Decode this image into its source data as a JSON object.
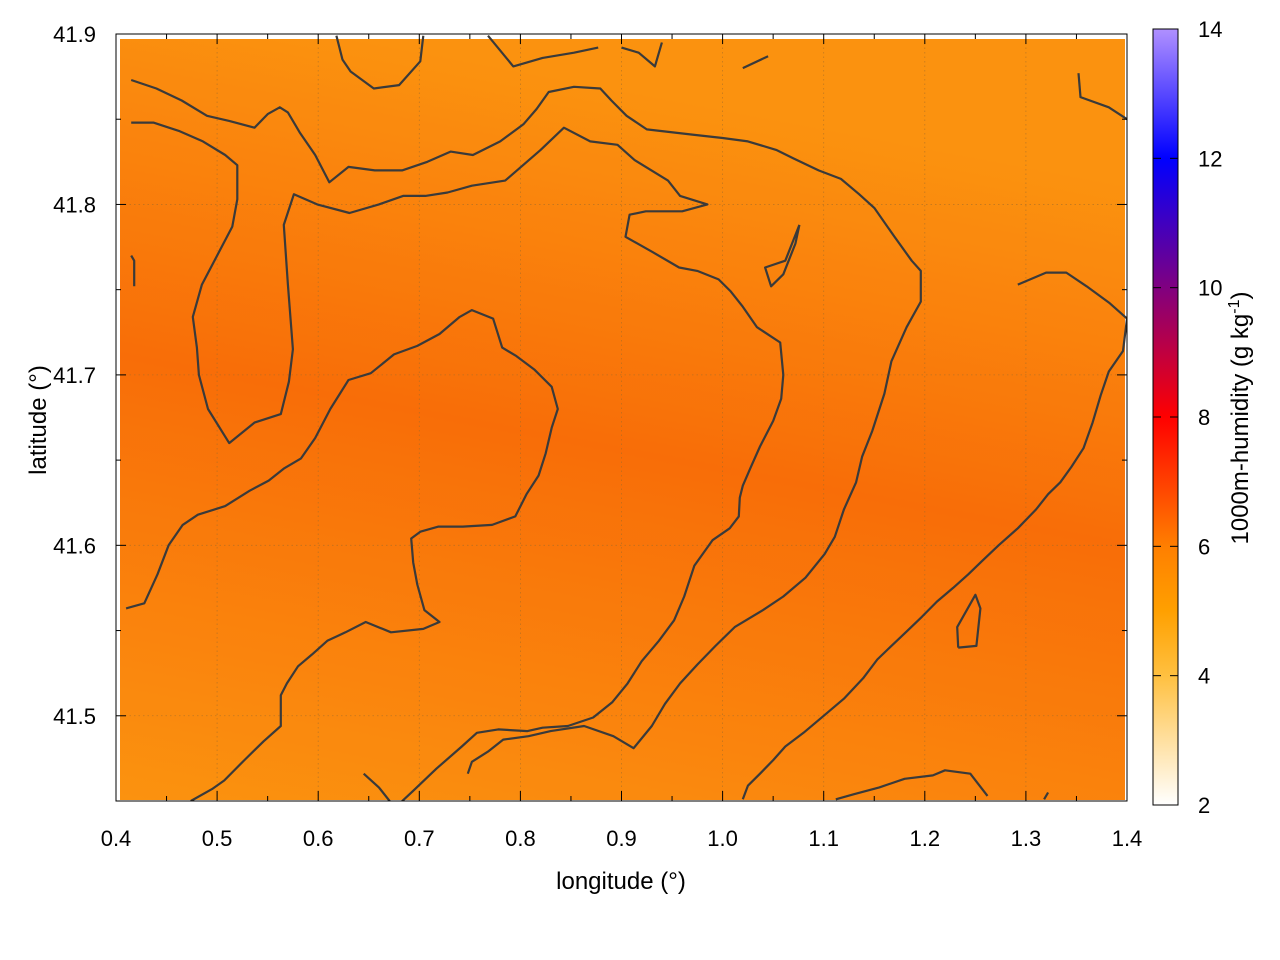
{
  "chart_data": {
    "type": "heatmap",
    "xlabel": "longitude (°)",
    "ylabel": "latitude (°)",
    "colorbar_label_main": "1000m-humidity (g kg",
    "colorbar_label_sup": "-1",
    "colorbar_label_end": ")",
    "xlim": [
      0.4,
      1.4
    ],
    "ylim": [
      41.45,
      41.9
    ],
    "x_ticks": [
      0.4,
      0.5,
      0.6,
      0.7,
      0.8,
      0.9,
      1.0,
      1.1,
      1.2,
      1.3,
      1.4
    ],
    "x_tick_labels": [
      "0.4",
      "0.5",
      "0.6",
      "0.7",
      "0.8",
      "0.9",
      "1.0",
      "1.1",
      "1.2",
      "1.3",
      "1.4"
    ],
    "y_ticks": [
      41.5,
      41.6,
      41.7,
      41.8,
      41.9
    ],
    "y_tick_labels": [
      "41.5",
      "41.6",
      "41.7",
      "41.8",
      "41.9"
    ],
    "colorbar_range": [
      2,
      14
    ],
    "colorbar_ticks": [
      2,
      4,
      6,
      8,
      10,
      12,
      14
    ],
    "colorbar_tick_labels": [
      "2",
      "4",
      "6",
      "8",
      "10",
      "12",
      "14"
    ],
    "colormap": [
      {
        "value": 2,
        "color": "#ffffff"
      },
      {
        "value": 4,
        "color": "#ffc040"
      },
      {
        "value": 5,
        "color": "#ffa000"
      },
      {
        "value": 6,
        "color": "#ff7f00"
      },
      {
        "value": 8,
        "color": "#ff0000"
      },
      {
        "value": 10,
        "color": "#800080"
      },
      {
        "value": 12,
        "color": "#0000ff"
      },
      {
        "value": 14,
        "color": "#b090ff"
      }
    ],
    "field_colors": {
      "low": "#fb9612",
      "high": "#f86c0a"
    },
    "grid": true,
    "contours": [
      [
        [
          0.415,
          41.873
        ],
        [
          0.44,
          41.868
        ],
        [
          0.465,
          41.861
        ],
        [
          0.49,
          41.852
        ],
        [
          0.512,
          41.849
        ],
        [
          0.537,
          41.845
        ],
        [
          0.55,
          41.853
        ],
        [
          0.562,
          41.857
        ],
        [
          0.57,
          41.854
        ],
        [
          0.582,
          41.842
        ],
        [
          0.597,
          41.829
        ],
        [
          0.611,
          41.813
        ],
        [
          0.63,
          41.822
        ],
        [
          0.656,
          41.82
        ],
        [
          0.683,
          41.82
        ],
        [
          0.708,
          41.825
        ],
        [
          0.731,
          41.831
        ],
        [
          0.753,
          41.829
        ],
        [
          0.78,
          41.837
        ],
        [
          0.803,
          41.847
        ],
        [
          0.816,
          41.856
        ],
        [
          0.828,
          41.866
        ],
        [
          0.853,
          41.869
        ],
        [
          0.879,
          41.868
        ],
        [
          0.89,
          41.861
        ],
        [
          0.905,
          41.852
        ],
        [
          0.925,
          41.844
        ],
        [
          0.97,
          41.841
        ],
        [
          1.0,
          41.839
        ],
        [
          1.025,
          41.837
        ],
        [
          1.053,
          41.832
        ],
        [
          1.07,
          41.827
        ],
        [
          1.095,
          41.82
        ],
        [
          1.117,
          41.815
        ],
        [
          1.135,
          41.806
        ],
        [
          1.15,
          41.798
        ],
        [
          1.17,
          41.781
        ],
        [
          1.187,
          41.767
        ],
        [
          1.196,
          41.761
        ],
        [
          1.196,
          41.743
        ],
        [
          1.182,
          41.728
        ],
        [
          1.167,
          41.708
        ],
        [
          1.16,
          41.689
        ],
        [
          1.148,
          41.667
        ],
        [
          1.138,
          41.652
        ],
        [
          1.132,
          41.637
        ],
        [
          1.12,
          41.621
        ],
        [
          1.111,
          41.605
        ],
        [
          1.101,
          41.595
        ],
        [
          1.082,
          41.581
        ],
        [
          1.06,
          41.57
        ],
        [
          1.04,
          41.562
        ],
        [
          1.012,
          41.552
        ],
        [
          0.993,
          41.541
        ],
        [
          0.975,
          41.53
        ],
        [
          0.958,
          41.519
        ],
        [
          0.943,
          41.507
        ],
        [
          0.93,
          41.494
        ],
        [
          0.912,
          41.481
        ],
        [
          0.892,
          41.488
        ],
        [
          0.863,
          41.494
        ],
        [
          0.83,
          41.491
        ],
        [
          0.808,
          41.488
        ],
        [
          0.783,
          41.486
        ],
        [
          0.768,
          41.479
        ],
        [
          0.752,
          41.473
        ],
        [
          0.748,
          41.466
        ]
      ],
      [
        [
          0.415,
          41.848
        ],
        [
          0.437,
          41.848
        ],
        [
          0.463,
          41.843
        ],
        [
          0.486,
          41.837
        ],
        [
          0.508,
          41.829
        ],
        [
          0.52,
          41.823
        ],
        [
          0.52,
          41.803
        ],
        [
          0.515,
          41.787
        ],
        [
          0.5,
          41.77
        ],
        [
          0.485,
          41.753
        ],
        [
          0.476,
          41.734
        ],
        [
          0.48,
          41.716
        ],
        [
          0.482,
          41.7
        ],
        [
          0.491,
          41.68
        ],
        [
          0.512,
          41.66
        ],
        [
          0.537,
          41.672
        ],
        [
          0.563,
          41.677
        ],
        [
          0.571,
          41.696
        ],
        [
          0.575,
          41.715
        ],
        [
          0.57,
          41.753
        ],
        [
          0.566,
          41.788
        ],
        [
          0.576,
          41.806
        ],
        [
          0.599,
          41.8
        ],
        [
          0.631,
          41.795
        ],
        [
          0.66,
          41.8
        ],
        [
          0.684,
          41.805
        ],
        [
          0.706,
          41.805
        ],
        [
          0.728,
          41.807
        ],
        [
          0.752,
          41.811
        ],
        [
          0.785,
          41.814
        ],
        [
          0.82,
          41.832
        ],
        [
          0.843,
          41.845
        ],
        [
          0.869,
          41.837
        ],
        [
          0.896,
          41.835
        ],
        [
          0.913,
          41.826
        ],
        [
          0.946,
          41.814
        ],
        [
          0.958,
          41.805
        ],
        [
          0.985,
          41.8
        ],
        [
          0.96,
          41.796
        ],
        [
          0.924,
          41.796
        ],
        [
          0.908,
          41.794
        ],
        [
          0.904,
          41.781
        ],
        [
          0.931,
          41.772
        ],
        [
          0.957,
          41.763
        ],
        [
          0.975,
          41.761
        ],
        [
          0.996,
          41.756
        ],
        [
          1.008,
          41.749
        ],
        [
          1.02,
          41.74
        ],
        [
          1.034,
          41.728
        ],
        [
          1.057,
          41.719
        ],
        [
          1.06,
          41.7
        ],
        [
          1.058,
          41.686
        ],
        [
          1.05,
          41.673
        ],
        [
          1.037,
          41.658
        ],
        [
          1.028,
          41.646
        ],
        [
          1.02,
          41.635
        ],
        [
          1.017,
          41.628
        ],
        [
          1.016,
          41.617
        ],
        [
          1.007,
          41.61
        ],
        [
          0.99,
          41.603
        ],
        [
          0.972,
          41.588
        ],
        [
          0.962,
          41.57
        ],
        [
          0.952,
          41.556
        ],
        [
          0.937,
          41.544
        ],
        [
          0.92,
          41.532
        ],
        [
          0.906,
          41.519
        ],
        [
          0.891,
          41.508
        ],
        [
          0.872,
          41.499
        ],
        [
          0.847,
          41.494
        ],
        [
          0.822,
          41.493
        ],
        [
          0.807,
          41.491
        ],
        [
          0.778,
          41.492
        ],
        [
          0.757,
          41.49
        ],
        [
          0.742,
          41.482
        ],
        [
          0.717,
          41.469
        ],
        [
          0.694,
          41.456
        ],
        [
          0.676,
          41.446
        ],
        [
          0.66,
          41.458
        ],
        [
          0.645,
          41.466
        ]
      ],
      [
        [
          0.41,
          41.563
        ],
        [
          0.428,
          41.566
        ],
        [
          0.441,
          41.583
        ],
        [
          0.452,
          41.6
        ],
        [
          0.466,
          41.612
        ],
        [
          0.481,
          41.618
        ],
        [
          0.508,
          41.623
        ],
        [
          0.532,
          41.632
        ],
        [
          0.551,
          41.638
        ],
        [
          0.566,
          41.645
        ],
        [
          0.583,
          41.651
        ],
        [
          0.597,
          41.663
        ],
        [
          0.612,
          41.68
        ],
        [
          0.63,
          41.697
        ],
        [
          0.652,
          41.701
        ],
        [
          0.675,
          41.712
        ],
        [
          0.698,
          41.717
        ],
        [
          0.72,
          41.724
        ],
        [
          0.74,
          41.734
        ],
        [
          0.752,
          41.738
        ],
        [
          0.773,
          41.733
        ],
        [
          0.782,
          41.716
        ],
        [
          0.796,
          41.711
        ],
        [
          0.814,
          41.703
        ],
        [
          0.831,
          41.693
        ],
        [
          0.837,
          41.68
        ],
        [
          0.831,
          41.669
        ],
        [
          0.825,
          41.654
        ],
        [
          0.818,
          41.641
        ],
        [
          0.806,
          41.63
        ],
        [
          0.795,
          41.617
        ],
        [
          0.772,
          41.612
        ],
        [
          0.743,
          41.611
        ],
        [
          0.719,
          41.611
        ],
        [
          0.701,
          41.608
        ],
        [
          0.692,
          41.604
        ],
        [
          0.694,
          41.59
        ],
        [
          0.698,
          41.577
        ],
        [
          0.705,
          41.562
        ],
        [
          0.72,
          41.555
        ],
        [
          0.704,
          41.551
        ],
        [
          0.672,
          41.549
        ],
        [
          0.647,
          41.555
        ],
        [
          0.627,
          41.549
        ],
        [
          0.609,
          41.544
        ],
        [
          0.594,
          41.536
        ],
        [
          0.58,
          41.529
        ],
        [
          0.569,
          41.519
        ],
        [
          0.563,
          41.512
        ],
        [
          0.563,
          41.494
        ],
        [
          0.546,
          41.485
        ],
        [
          0.527,
          41.474
        ],
        [
          0.507,
          41.462
        ],
        [
          0.495,
          41.457
        ],
        [
          0.474,
          41.45
        ]
      ],
      [
        [
          1.076,
          41.788
        ],
        [
          1.072,
          41.777
        ],
        [
          1.06,
          41.759
        ],
        [
          1.048,
          41.752
        ],
        [
          1.042,
          41.763
        ],
        [
          1.062,
          41.767
        ],
        [
          1.076,
          41.788
        ]
      ],
      [
        [
          1.233,
          41.54
        ],
        [
          1.251,
          41.541
        ],
        [
          1.255,
          41.563
        ],
        [
          1.25,
          41.571
        ],
        [
          1.232,
          41.552
        ],
        [
          1.233,
          41.54
        ]
      ],
      [
        [
          0.618,
          41.899
        ],
        [
          0.624,
          41.885
        ],
        [
          0.632,
          41.878
        ],
        [
          0.655,
          41.868
        ],
        [
          0.68,
          41.87
        ],
        [
          0.701,
          41.884
        ],
        [
          0.704,
          41.899
        ]
      ],
      [
        [
          0.768,
          41.899
        ],
        [
          0.793,
          41.881
        ],
        [
          0.822,
          41.886
        ],
        [
          0.853,
          41.889
        ],
        [
          0.877,
          41.892
        ]
      ],
      [
        [
          0.9,
          41.892
        ],
        [
          0.917,
          41.889
        ],
        [
          0.933,
          41.881
        ],
        [
          0.94,
          41.895
        ]
      ],
      [
        [
          1.02,
          41.88
        ],
        [
          1.045,
          41.887
        ]
      ],
      [
        [
          1.352,
          41.877
        ],
        [
          1.354,
          41.863
        ],
        [
          1.382,
          41.857
        ],
        [
          1.4,
          41.85
        ]
      ],
      [
        [
          0.415,
          41.77
        ],
        [
          0.418,
          41.767
        ],
        [
          0.418,
          41.752
        ]
      ],
      [
        [
          1.292,
          41.753
        ],
        [
          1.32,
          41.76
        ],
        [
          1.34,
          41.76
        ],
        [
          1.36,
          41.752
        ],
        [
          1.383,
          41.742
        ],
        [
          1.4,
          41.733
        ],
        [
          1.396,
          41.714
        ],
        [
          1.382,
          41.702
        ],
        [
          1.374,
          41.688
        ],
        [
          1.366,
          41.672
        ],
        [
          1.357,
          41.657
        ],
        [
          1.345,
          41.646
        ],
        [
          1.334,
          41.637
        ],
        [
          1.322,
          41.63
        ],
        [
          1.31,
          41.621
        ],
        [
          1.292,
          41.61
        ],
        [
          1.273,
          41.6
        ],
        [
          1.257,
          41.591
        ],
        [
          1.243,
          41.583
        ],
        [
          1.228,
          41.575
        ],
        [
          1.212,
          41.567
        ],
        [
          1.197,
          41.558
        ],
        [
          1.183,
          41.55
        ],
        [
          1.167,
          41.541
        ],
        [
          1.153,
          41.533
        ],
        [
          1.139,
          41.522
        ],
        [
          1.12,
          41.51
        ],
        [
          1.1,
          41.5
        ],
        [
          1.08,
          41.49
        ],
        [
          1.062,
          41.482
        ],
        [
          1.05,
          41.474
        ],
        [
          1.037,
          41.466
        ],
        [
          1.025,
          41.459
        ],
        [
          1.02,
          41.451
        ]
      ],
      [
        [
          1.112,
          41.451
        ],
        [
          1.13,
          41.454
        ],
        [
          1.155,
          41.458
        ],
        [
          1.18,
          41.463
        ],
        [
          1.208,
          41.465
        ],
        [
          1.22,
          41.468
        ],
        [
          1.245,
          41.466
        ],
        [
          1.262,
          41.453
        ]
      ],
      [
        [
          1.318,
          41.451
        ],
        [
          1.322,
          41.455
        ]
      ]
    ]
  }
}
